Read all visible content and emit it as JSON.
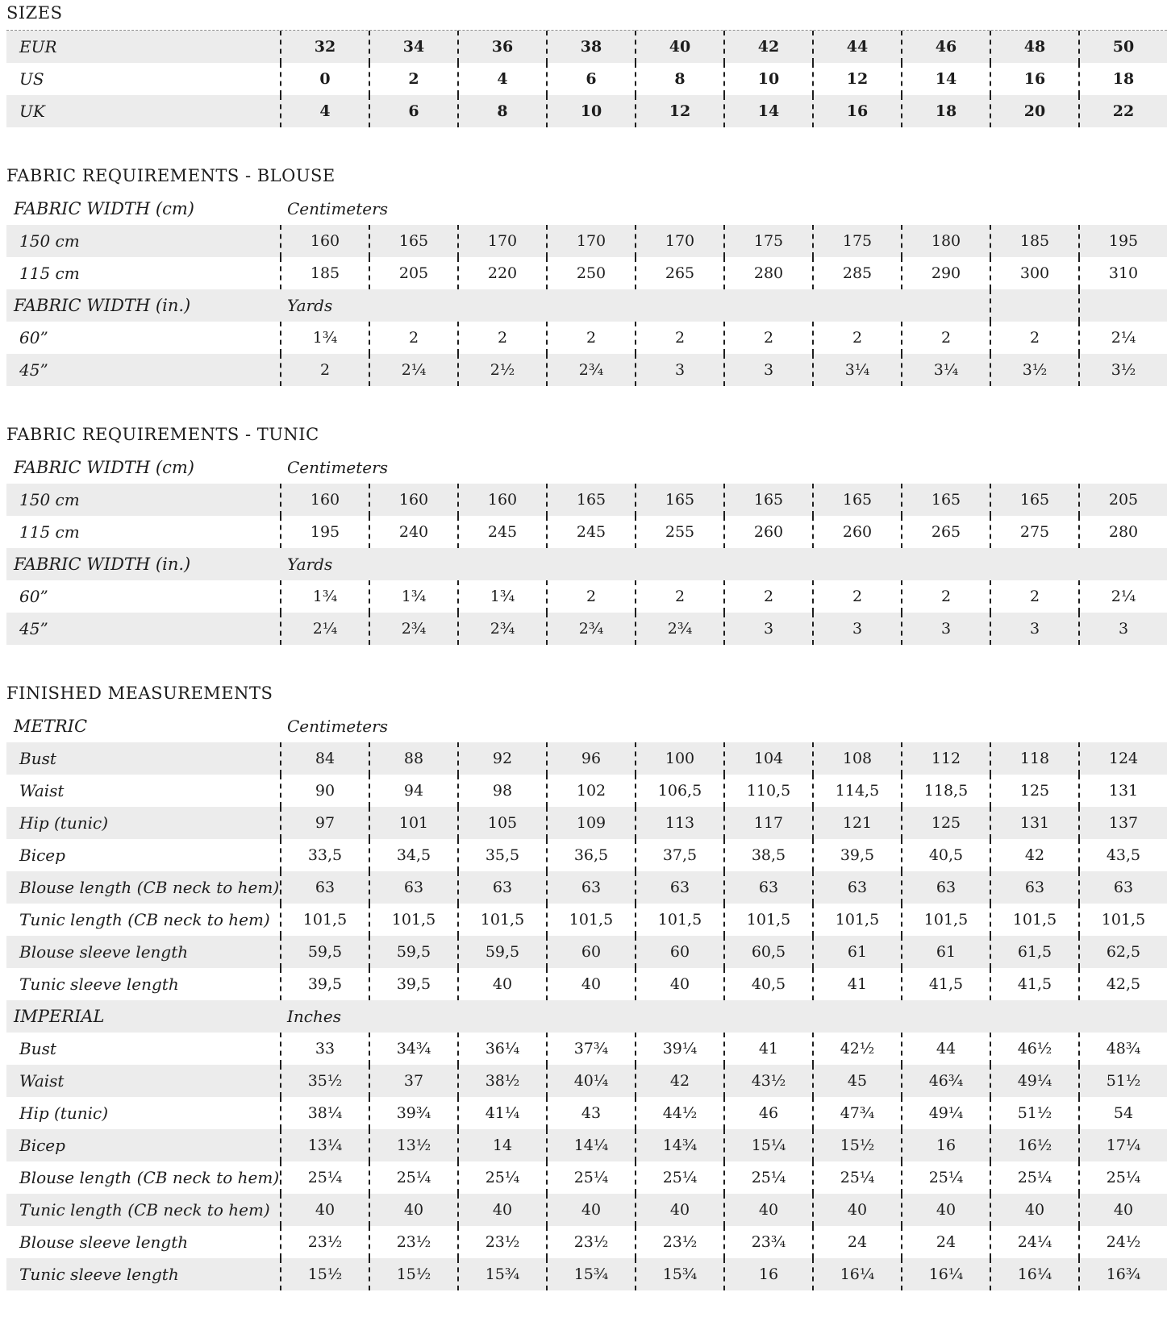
{
  "page": {
    "shaded_row_color": "#ececec",
    "separator_style": "black dashed vertical lines between size columns"
  },
  "sections": {
    "sizes": {
      "heading": "SIZES",
      "table": {
        "rows": [
          {
            "type": "data",
            "shaded": true,
            "label": "EUR",
            "values": [
              "32",
              "34",
              "36",
              "38",
              "40",
              "42",
              "44",
              "46",
              "48",
              "50"
            ]
          },
          {
            "type": "data",
            "shaded": false,
            "label": "US",
            "values": [
              "0",
              "2",
              "4",
              "6",
              "8",
              "10",
              "12",
              "14",
              "16",
              "18"
            ]
          },
          {
            "type": "data",
            "shaded": true,
            "label": "UK",
            "values": [
              "4",
              "6",
              "8",
              "10",
              "12",
              "14",
              "16",
              "18",
              "20",
              "22"
            ]
          }
        ]
      }
    },
    "blouse": {
      "heading": "FABRIC REQUIREMENTS - BLOUSE",
      "table": {
        "rows": [
          {
            "type": "header",
            "shaded": false,
            "label": "FABRIC WIDTH (cm)",
            "unit": "Centimeters"
          },
          {
            "type": "data",
            "shaded": true,
            "label": "150 cm",
            "values": [
              "160",
              "165",
              "170",
              "170",
              "170",
              "175",
              "175",
              "180",
              "185",
              "195"
            ]
          },
          {
            "type": "data",
            "shaded": false,
            "label": "115 cm",
            "values": [
              "185",
              "205",
              "220",
              "250",
              "265",
              "280",
              "285",
              "290",
              "300",
              "310"
            ]
          },
          {
            "type": "header",
            "shaded": true,
            "label": "FABRIC WIDTH (in.)",
            "unit": "Yards",
            "tail_dashes": 2
          },
          {
            "type": "data",
            "shaded": false,
            "label": "60”",
            "values": [
              "1¾",
              "2",
              "2",
              "2",
              "2",
              "2",
              "2",
              "2",
              "2",
              "2¼"
            ]
          },
          {
            "type": "data",
            "shaded": true,
            "label": "45”",
            "values": [
              "2",
              "2¼",
              "2½",
              "2¾",
              "3",
              "3",
              "3¼",
              "3¼",
              "3½",
              "3½"
            ]
          }
        ]
      }
    },
    "tunic": {
      "heading": "FABRIC REQUIREMENTS - TUNIC",
      "table": {
        "rows": [
          {
            "type": "header",
            "shaded": false,
            "label": "FABRIC WIDTH (cm)",
            "unit": "Centimeters"
          },
          {
            "type": "data",
            "shaded": true,
            "label": "150 cm",
            "values": [
              "160",
              "160",
              "160",
              "165",
              "165",
              "165",
              "165",
              "165",
              "165",
              "205"
            ]
          },
          {
            "type": "data",
            "shaded": false,
            "label": "115 cm",
            "values": [
              "195",
              "240",
              "245",
              "245",
              "255",
              "260",
              "260",
              "265",
              "275",
              "280"
            ]
          },
          {
            "type": "header",
            "shaded": true,
            "label": "FABRIC WIDTH (in.)",
            "unit": "Yards"
          },
          {
            "type": "data",
            "shaded": false,
            "label": "60”",
            "values": [
              "1¾",
              "1¾",
              "1¾",
              "2",
              "2",
              "2",
              "2",
              "2",
              "2",
              "2¼"
            ]
          },
          {
            "type": "data",
            "shaded": true,
            "label": "45”",
            "values": [
              "2¼",
              "2¾",
              "2¾",
              "2¾",
              "2¾",
              "3",
              "3",
              "3",
              "3",
              "3"
            ]
          }
        ]
      }
    },
    "finished": {
      "heading": "FINISHED MEASUREMENTS",
      "table": {
        "rows": [
          {
            "type": "header",
            "shaded": false,
            "label": "METRIC",
            "unit": "Centimeters"
          },
          {
            "type": "data",
            "shaded": true,
            "label": "Bust",
            "values": [
              "84",
              "88",
              "92",
              "96",
              "100",
              "104",
              "108",
              "112",
              "118",
              "124"
            ]
          },
          {
            "type": "data",
            "shaded": false,
            "label": "Waist",
            "values": [
              "90",
              "94",
              "98",
              "102",
              "106,5",
              "110,5",
              "114,5",
              "118,5",
              "125",
              "131"
            ]
          },
          {
            "type": "data",
            "shaded": true,
            "label": "Hip (tunic)",
            "values": [
              "97",
              "101",
              "105",
              "109",
              "113",
              "117",
              "121",
              "125",
              "131",
              "137"
            ]
          },
          {
            "type": "data",
            "shaded": false,
            "label": "Bicep",
            "values": [
              "33,5",
              "34,5",
              "35,5",
              "36,5",
              "37,5",
              "38,5",
              "39,5",
              "40,5",
              "42",
              "43,5"
            ]
          },
          {
            "type": "data",
            "shaded": true,
            "label": "Blouse length (CB neck to hem)",
            "values": [
              "63",
              "63",
              "63",
              "63",
              "63",
              "63",
              "63",
              "63",
              "63",
              "63"
            ]
          },
          {
            "type": "data",
            "shaded": false,
            "label": "Tunic length (CB neck to hem)",
            "values": [
              "101,5",
              "101,5",
              "101,5",
              "101,5",
              "101,5",
              "101,5",
              "101,5",
              "101,5",
              "101,5",
              "101,5"
            ]
          },
          {
            "type": "data",
            "shaded": true,
            "label": "Blouse sleeve length",
            "values": [
              "59,5",
              "59,5",
              "59,5",
              "60",
              "60",
              "60,5",
              "61",
              "61",
              "61,5",
              "62,5"
            ]
          },
          {
            "type": "data",
            "shaded": false,
            "label": "Tunic sleeve length",
            "values": [
              "39,5",
              "39,5",
              "40",
              "40",
              "40",
              "40,5",
              "41",
              "41,5",
              "41,5",
              "42,5"
            ]
          },
          {
            "type": "header",
            "shaded": true,
            "label": "IMPERIAL",
            "unit": "Inches"
          },
          {
            "type": "data",
            "shaded": false,
            "label": "Bust",
            "values": [
              "33",
              "34¾",
              "36¼",
              "37¾",
              "39¼",
              "41",
              "42½",
              "44",
              "46½",
              "48¾"
            ]
          },
          {
            "type": "data",
            "shaded": true,
            "label": "Waist",
            "values": [
              "35½",
              "37",
              "38½",
              "40¼",
              "42",
              "43½",
              "45",
              "46¾",
              "49¼",
              "51½"
            ]
          },
          {
            "type": "data",
            "shaded": false,
            "label": "Hip (tunic)",
            "values": [
              "38¼",
              "39¾",
              "41¼",
              "43",
              "44½",
              "46",
              "47¾",
              "49¼",
              "51½",
              "54"
            ]
          },
          {
            "type": "data",
            "shaded": true,
            "label": "Bicep",
            "values": [
              "13¼",
              "13½",
              "14",
              "14¼",
              "14¾",
              "15¼",
              "15½",
              "16",
              "16½",
              "17¼"
            ]
          },
          {
            "type": "data",
            "shaded": false,
            "label": "Blouse length (CB neck to hem)",
            "values": [
              "25¼",
              "25¼",
              "25¼",
              "25¼",
              "25¼",
              "25¼",
              "25¼",
              "25¼",
              "25¼",
              "25¼"
            ]
          },
          {
            "type": "data",
            "shaded": true,
            "label": "Tunic length (CB neck to hem)",
            "values": [
              "40",
              "40",
              "40",
              "40",
              "40",
              "40",
              "40",
              "40",
              "40",
              "40"
            ]
          },
          {
            "type": "data",
            "shaded": false,
            "label": "Blouse sleeve length",
            "values": [
              "23½",
              "23½",
              "23½",
              "23½",
              "23½",
              "23¾",
              "24",
              "24",
              "24¼",
              "24½"
            ]
          },
          {
            "type": "data",
            "shaded": true,
            "label": "Tunic sleeve length",
            "values": [
              "15½",
              "15½",
              "15¾",
              "15¾",
              "15¾",
              "16",
              "16¼",
              "16¼",
              "16¼",
              "16¾"
            ]
          }
        ]
      }
    }
  }
}
